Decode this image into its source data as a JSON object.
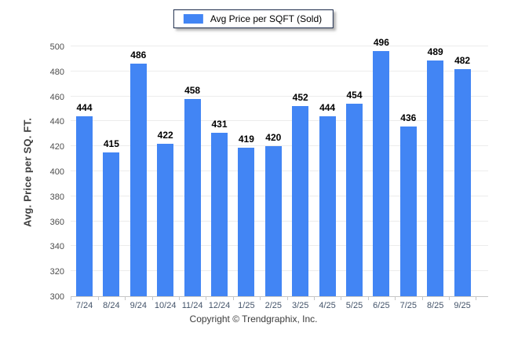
{
  "legend": {
    "label": "Avg Price per SQFT (Sold)",
    "swatch_color": "#4285f4"
  },
  "footer": {
    "copyright": "Copyright © Trendgraphix, Inc."
  },
  "colors": {
    "bar": "#4285f4",
    "gridline": "#ececec",
    "axis_line": "#c6c6c6",
    "x_label": "#44546a",
    "y_label": "#4d4d4d",
    "value_label": "#000000"
  },
  "chart_data": {
    "type": "bar",
    "title": "",
    "xlabel": "",
    "ylabel": "Avg. Price per SQ. FT.",
    "categories": [
      "7/24",
      "8/24",
      "9/24",
      "10/24",
      "11/24",
      "12/24",
      "1/25",
      "2/25",
      "3/25",
      "4/25",
      "5/25",
      "6/25",
      "7/25",
      "8/25",
      "9/25"
    ],
    "series": [
      {
        "name": "Avg Price per SQFT (Sold)",
        "values": [
          444,
          415,
          486,
          422,
          458,
          431,
          419,
          420,
          452,
          444,
          454,
          496,
          436,
          489,
          482
        ]
      }
    ],
    "ylim": [
      300,
      500
    ],
    "ytick_step": 20,
    "grid": true,
    "value_labels": true,
    "legend_position": "top-center",
    "bar_color": "#4285f4"
  }
}
